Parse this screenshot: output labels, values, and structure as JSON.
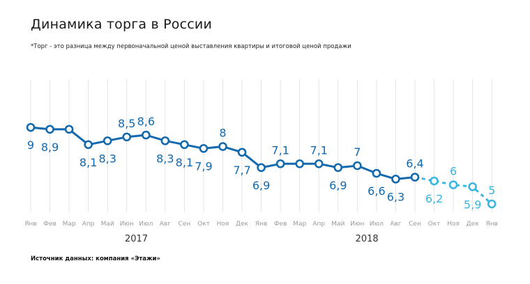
{
  "title": "Динамика торга в России",
  "footnote": "*Торг - это разница между первоначальной ценой выставления квартиры и итоговой ценой продажи",
  "source": "Источник данных: компания «Этажи»",
  "colors": {
    "actual": "#1369ad",
    "forecast": "#3bb6e0",
    "grid": "#e4e4e4"
  },
  "chart_data": {
    "type": "line",
    "title": "Динамика торга в России",
    "xlabel": "",
    "ylabel": "",
    "categories": [
      "Янв",
      "Фев",
      "Мар",
      "Апр",
      "Май",
      "Июн",
      "Июл",
      "Авг",
      "Сен",
      "Окт",
      "Ноя",
      "Дек",
      "Янв",
      "Фев",
      "Мар",
      "Апр",
      "Май",
      "Июн",
      "Июл",
      "Авг",
      "Сен",
      "Окт",
      "Ноя",
      "Дек",
      "Янв"
    ],
    "years": [
      {
        "label": "2017",
        "start": 0,
        "end": 11
      },
      {
        "label": "2018",
        "start": 12,
        "end": 23
      }
    ],
    "series": [
      {
        "values": [
          9,
          8.9,
          8.9,
          8.1,
          8.3,
          8.5,
          8.6,
          8.3,
          8.1,
          7.9,
          8,
          7.7,
          6.9,
          7.1,
          7.1,
          7.1,
          6.9,
          7,
          6.6,
          6.3,
          6.4,
          null,
          null,
          null,
          null
        ],
        "style": "solid"
      },
      {
        "values": [
          null,
          null,
          null,
          null,
          null,
          null,
          null,
          null,
          null,
          null,
          null,
          null,
          null,
          null,
          null,
          null,
          null,
          null,
          null,
          null,
          6.4,
          6.2,
          6,
          5.9,
          5
        ],
        "style": "dashed"
      }
    ],
    "labels": [
      "9",
      "8,9",
      "",
      "8,1",
      "8,3",
      "8,5",
      "8,6",
      "8,3",
      "8,1",
      "7,9",
      "8",
      "7,7",
      "6,9",
      "7,1",
      "",
      "7,1",
      "6,9",
      "7",
      "6,6",
      "6,3",
      "6,4",
      "6,2",
      "6",
      "5,9",
      "5"
    ],
    "label_pos": [
      "below",
      "below",
      "",
      "below",
      "below",
      "above",
      "above",
      "below",
      "below",
      "below",
      "above",
      "below",
      "below",
      "above",
      "",
      "above",
      "below",
      "above",
      "below",
      "below",
      "above",
      "below",
      "above",
      "below",
      "above"
    ],
    "ylim": [
      0,
      10
    ],
    "grid": "vertical"
  }
}
